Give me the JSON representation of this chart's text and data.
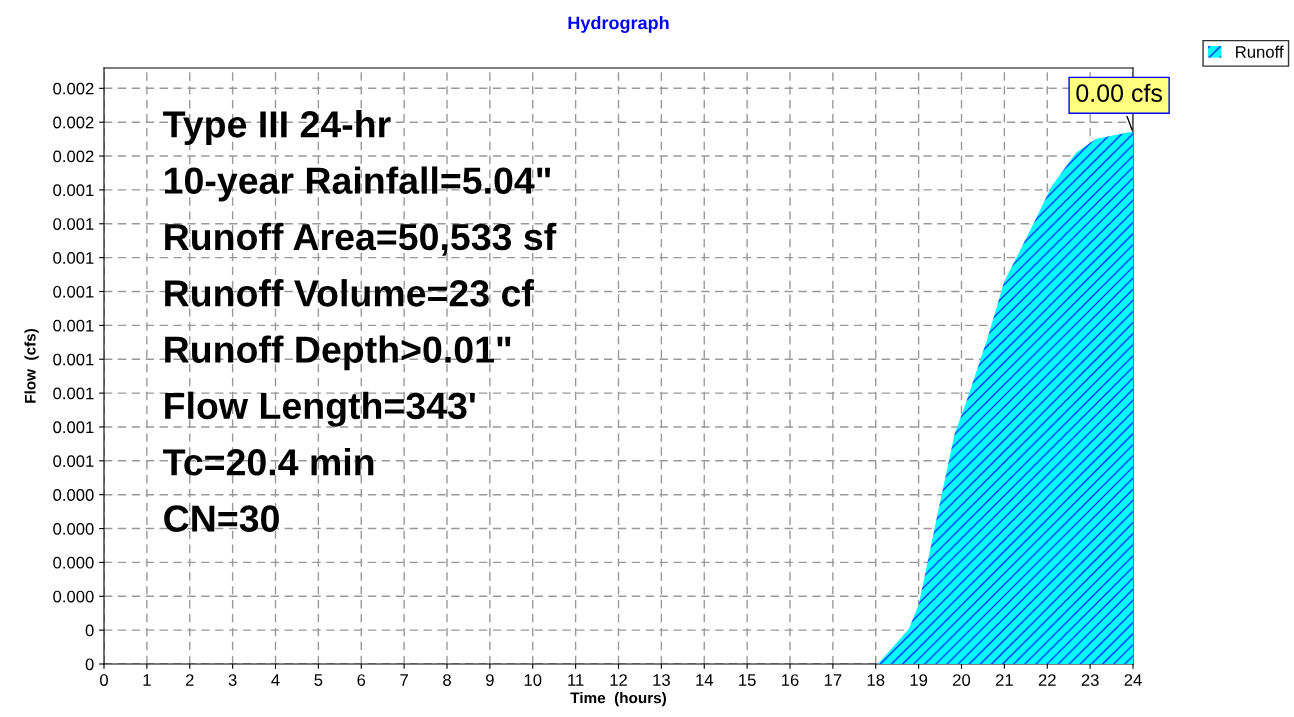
{
  "chart_data": {
    "type": "area",
    "title": "Hydrograph",
    "xlabel": "Time  (hours)",
    "ylabel": "Flow  (cfs)",
    "x": [
      0,
      18.05,
      18.77,
      19.0,
      19.42,
      19.84,
      20.1,
      20.6,
      21.0,
      21.6,
      22.1,
      22.67,
      23.13,
      23.9,
      24
    ],
    "series": [
      {
        "name": "Runoff",
        "color": "#00ffff",
        "values": [
          0,
          0,
          0.000103,
          0.000174,
          0.00043,
          0.00068,
          0.00077,
          0.00096,
          0.00113,
          0.00128,
          0.00141,
          0.00151,
          0.00155,
          0.00157,
          0.00157
        ]
      }
    ],
    "xlim": [
      0,
      24
    ],
    "xticks": [
      0,
      1,
      2,
      3,
      4,
      5,
      6,
      7,
      8,
      9,
      10,
      11,
      12,
      13,
      14,
      15,
      16,
      17,
      18,
      19,
      20,
      21,
      22,
      23,
      24
    ],
    "ylim": [
      0,
      0.00176
    ],
    "yticks": [
      {
        "value": 0,
        "label": "0"
      },
      {
        "value": 0.0001,
        "label": "0"
      },
      {
        "value": 0.0002,
        "label": "0.000"
      },
      {
        "value": 0.0003,
        "label": "0.000"
      },
      {
        "value": 0.0004,
        "label": "0.000"
      },
      {
        "value": 0.0005,
        "label": "0.000"
      },
      {
        "value": 0.0006,
        "label": "0.001"
      },
      {
        "value": 0.0007,
        "label": "0.001"
      },
      {
        "value": 0.0008,
        "label": "0.001"
      },
      {
        "value": 0.0009,
        "label": "0.001"
      },
      {
        "value": 0.001,
        "label": "0.001"
      },
      {
        "value": 0.0011,
        "label": "0.001"
      },
      {
        "value": 0.0012,
        "label": "0.001"
      },
      {
        "value": 0.0013,
        "label": "0.001"
      },
      {
        "value": 0.0014,
        "label": "0.001"
      },
      {
        "value": 0.0015,
        "label": "0.002"
      },
      {
        "value": 0.0016,
        "label": "0.002"
      },
      {
        "value": 0.0017,
        "label": "0.002"
      }
    ],
    "annotations": [
      "Type III 24-hr",
      "10-year Rainfall=5.04\"",
      "Runoff Area=50,533 sf",
      "Runoff Volume=23 cf",
      "Runoff Depth>0.01\"",
      "Flow Length=343'",
      "Tc=20.4 min",
      "CN=30",
      {
        "text": "0.00 cfs",
        "x": 24,
        "y": 0.00157
      }
    ],
    "grid": true,
    "legend": "top right"
  }
}
